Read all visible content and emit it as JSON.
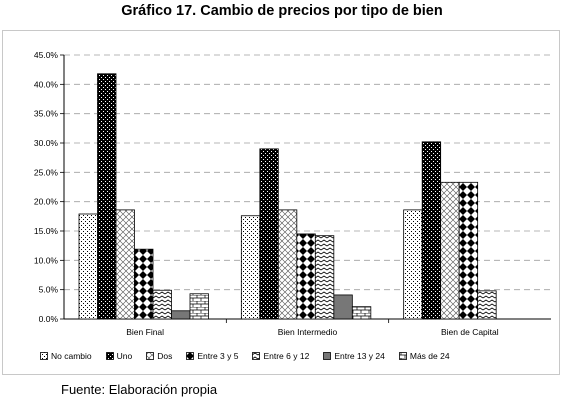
{
  "title": "Gráfico 17. Cambio de precios por tipo de bien",
  "source": "Fuente: Elaboración propia",
  "chart_data": {
    "type": "bar",
    "title": "Gráfico 17. Cambio de precios por tipo de bien",
    "xlabel": "",
    "ylabel": "",
    "ylim": [
      0,
      45
    ],
    "yticks": [
      "0.0%",
      "5.0%",
      "10.0%",
      "15.0%",
      "20.0%",
      "25.0%",
      "30.0%",
      "35.0%",
      "40.0%",
      "45.0%"
    ],
    "grid": true,
    "legend_position": "bottom",
    "categories": [
      "Bien Final",
      "Bien Intermedio",
      "Bien de Capital"
    ],
    "series": [
      {
        "name": "No cambio",
        "pattern": "dots-fine",
        "values": [
          17.9,
          17.6,
          18.6
        ]
      },
      {
        "name": "Uno",
        "pattern": "dense-dark",
        "values": [
          41.8,
          29.0,
          30.2
        ]
      },
      {
        "name": "Dos",
        "pattern": "diamond-light",
        "values": [
          18.6,
          18.6,
          23.3
        ]
      },
      {
        "name": "Entre 3 y 5",
        "pattern": "checker-diamond",
        "values": [
          11.9,
          14.5,
          23.3
        ]
      },
      {
        "name": "Entre 6 y 12",
        "pattern": "zigzag",
        "values": [
          4.9,
          14.2,
          4.8
        ]
      },
      {
        "name": "Entre 13 y 24",
        "pattern": "solid-gray",
        "values": [
          1.4,
          4.1,
          0
        ]
      },
      {
        "name": "Más de 24",
        "pattern": "brick",
        "values": [
          4.3,
          2.1,
          0
        ]
      }
    ]
  }
}
